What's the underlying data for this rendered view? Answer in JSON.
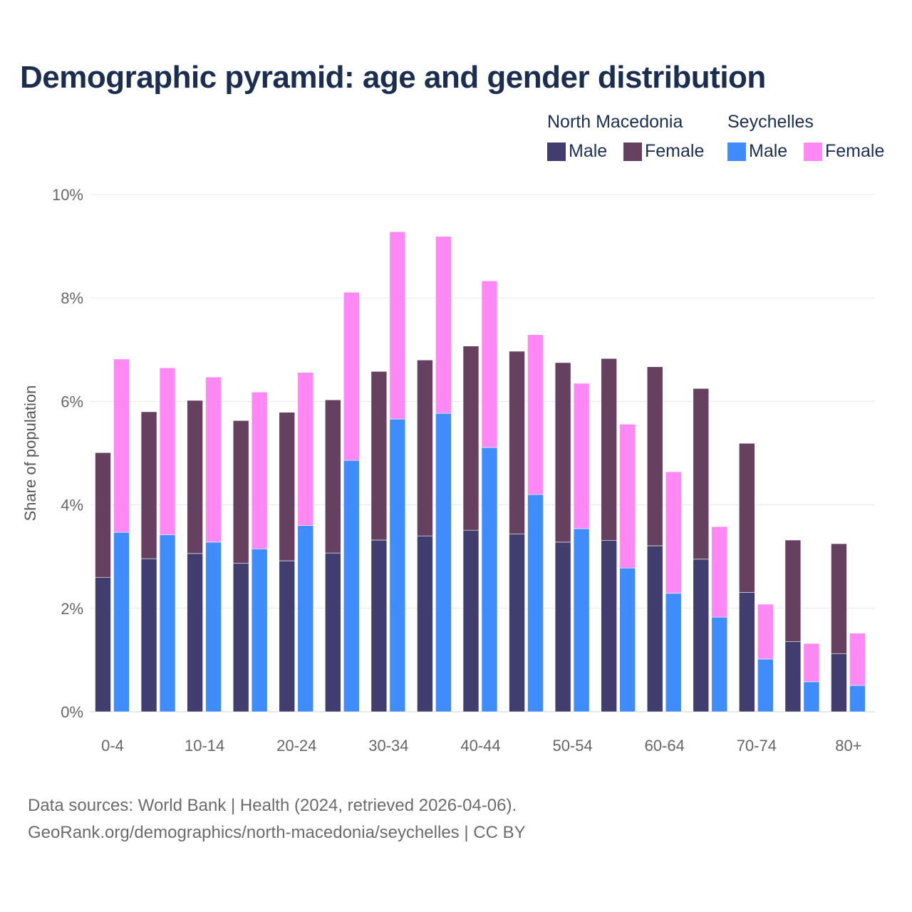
{
  "chart_data": {
    "type": "bar",
    "stacked": true,
    "title": "Demographic pyramid: age and gender distribution",
    "ylabel": "Share of population",
    "xlabel": "",
    "ylim": [
      0,
      10
    ],
    "yticks": [
      "0%",
      "2%",
      "4%",
      "6%",
      "8%",
      "10%"
    ],
    "ytick_values": [
      0,
      2,
      4,
      6,
      8,
      10
    ],
    "grid": true,
    "legend_position": "top-right",
    "categories": [
      "0-4",
      "5-9",
      "10-14",
      "15-19",
      "20-24",
      "25-29",
      "30-34",
      "35-39",
      "40-44",
      "45-49",
      "50-54",
      "55-59",
      "60-64",
      "65-69",
      "70-74",
      "75-79",
      "80+"
    ],
    "xtick_labels": [
      "0-4",
      "10-14",
      "20-24",
      "30-34",
      "40-44",
      "50-54",
      "60-64",
      "70-74",
      "80+"
    ],
    "countries": [
      {
        "name": "North Macedonia",
        "series": [
          {
            "name": "Male",
            "color": "#413e6f",
            "values": [
              2.6,
              2.96,
              3.06,
              2.87,
              2.92,
              3.07,
              3.32,
              3.4,
              3.51,
              3.44,
              3.28,
              3.31,
              3.21,
              2.95,
              2.31,
              1.36,
              1.12
            ]
          },
          {
            "name": "Female",
            "color": "#66405f",
            "values": [
              2.41,
              2.84,
              2.96,
              2.76,
              2.87,
              2.96,
              3.26,
              3.4,
              3.56,
              3.53,
              3.47,
              3.52,
              3.46,
              3.3,
              2.88,
              1.96,
              2.13
            ]
          }
        ]
      },
      {
        "name": "Seychelles",
        "series": [
          {
            "name": "Male",
            "color": "#3f8cff",
            "values": [
              3.47,
              3.42,
              3.28,
              3.15,
              3.6,
              4.86,
              5.66,
              5.77,
              5.11,
              4.2,
              3.54,
              2.78,
              2.29,
              1.83,
              1.02,
              0.58,
              0.51
            ]
          },
          {
            "name": "Female",
            "color": "#ff88f5",
            "values": [
              3.35,
              3.23,
              3.19,
              3.03,
              2.96,
              3.25,
              3.62,
              3.42,
              3.22,
              3.09,
              2.81,
              2.78,
              2.35,
              1.75,
              1.06,
              0.74,
              1.01
            ]
          }
        ]
      }
    ]
  },
  "footer": {
    "line1": "Data sources: World Bank | Health (2024, retrieved 2026-04-06).",
    "line2": "GeoRank.org/demographics/north-macedonia/seychelles | CC BY"
  }
}
